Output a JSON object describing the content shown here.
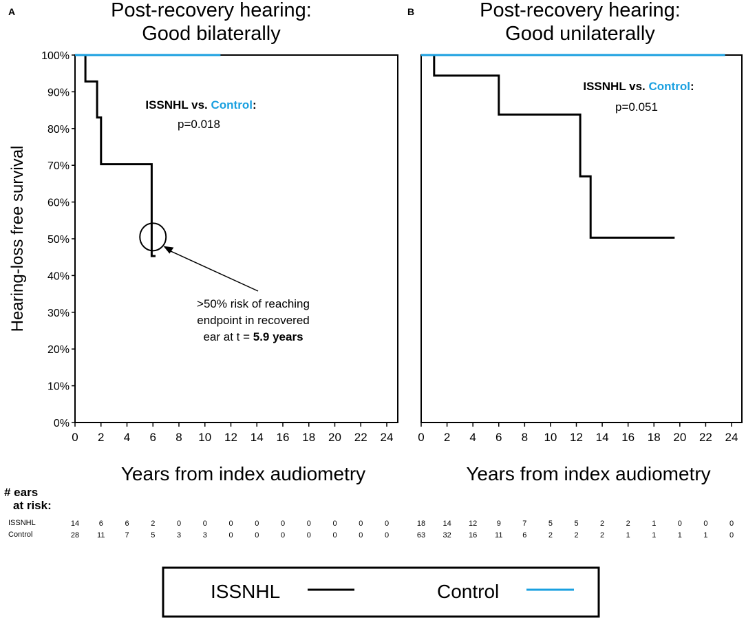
{
  "chart_data": [
    {
      "type": "line",
      "subtype": "kaplan-meier",
      "panel_label": "A",
      "title_lines": [
        "Post-recovery hearing:",
        "Good bilaterally"
      ],
      "ylabel": "Hearing-loss free survival",
      "xlabel": "Years from index audiometry",
      "xlim": [
        0,
        25
      ],
      "ylim": [
        0,
        100
      ],
      "x_ticks": [
        0,
        2,
        4,
        6,
        8,
        10,
        12,
        14,
        16,
        18,
        20,
        22,
        24
      ],
      "y_ticks": [
        0,
        10,
        20,
        30,
        40,
        50,
        60,
        70,
        80,
        90,
        100
      ],
      "y_tick_labels": [
        "0%",
        "10%",
        "20%",
        "30%",
        "40%",
        "50%",
        "60%",
        "70%",
        "80%",
        "90%",
        "100%"
      ],
      "series": [
        {
          "name": "ISSNHL",
          "color": "#000000",
          "steps": [
            [
              0,
              100
            ],
            [
              0.8,
              100
            ],
            [
              0.8,
              92.8
            ],
            [
              1.7,
              92.8
            ],
            [
              1.7,
              83
            ],
            [
              2.0,
              83
            ],
            [
              2.0,
              70.3
            ],
            [
              5.9,
              70.3
            ],
            [
              5.9,
              45.3
            ],
            [
              6.2,
              45.3
            ]
          ]
        },
        {
          "name": "Control",
          "color": "#1aa0e0",
          "steps": [
            [
              0,
              100
            ],
            [
              11.2,
              100
            ]
          ]
        }
      ],
      "comparison": {
        "left": "ISSNHL vs. ",
        "right": "Control",
        "colon": ":",
        "p": "p=0.018"
      },
      "annotation": {
        "lines": [
          ">50% risk of reaching",
          "endpoint in recovered",
          "ear at t = "
        ],
        "bold_value": "5.9 years",
        "circle_at": [
          6.0,
          50.5
        ],
        "arrow_to": [
          6.8,
          48
        ]
      },
      "at_risk": {
        "ISSNHL": [
          "14",
          "6",
          "6",
          "2",
          "0",
          "0",
          "0",
          "0",
          "0",
          "0",
          "0",
          "0",
          "0"
        ],
        "Control": [
          "28",
          "11",
          "7",
          "5",
          "3",
          "3",
          "0",
          "0",
          "0",
          "0",
          "0",
          "0",
          "0"
        ]
      }
    },
    {
      "type": "line",
      "subtype": "kaplan-meier",
      "panel_label": "B",
      "title_lines": [
        "Post-recovery hearing:",
        "Good unilaterally"
      ],
      "xlabel": "Years from index audiometry",
      "xlim": [
        0,
        25
      ],
      "ylim": [
        0,
        100
      ],
      "x_ticks": [
        0,
        2,
        4,
        6,
        8,
        10,
        12,
        14,
        16,
        18,
        20,
        22,
        24
      ],
      "series": [
        {
          "name": "ISSNHL",
          "color": "#000000",
          "steps": [
            [
              0,
              100
            ],
            [
              1.0,
              100
            ],
            [
              1.0,
              94.4
            ],
            [
              6.0,
              94.4
            ],
            [
              6.0,
              83.8
            ],
            [
              12.3,
              83.8
            ],
            [
              12.3,
              67
            ],
            [
              13.1,
              67
            ],
            [
              13.1,
              50.3
            ],
            [
              19.6,
              50.3
            ]
          ]
        },
        {
          "name": "Control",
          "color": "#1aa0e0",
          "steps": [
            [
              0,
              100
            ],
            [
              23.5,
              100
            ]
          ]
        }
      ],
      "comparison": {
        "left": "ISSNHL vs. ",
        "right": "Control",
        "colon": ":",
        "p": "p=0.051"
      },
      "at_risk": {
        "ISSNHL": [
          "18",
          "14",
          "12",
          "9",
          "7",
          "5",
          "5",
          "2",
          "2",
          "1",
          "0",
          "0",
          "0"
        ],
        "Control": [
          "63",
          "32",
          "16",
          "11",
          "6",
          "2",
          "2",
          "2",
          "1",
          "1",
          "1",
          "1",
          "0"
        ]
      }
    }
  ],
  "risk_table": {
    "heading_lines": [
      "# ears",
      "at risk:"
    ],
    "row_labels": [
      "ISSNHL",
      "Control"
    ]
  },
  "legend": {
    "items": [
      {
        "label": "ISSNHL",
        "color": "#000000"
      },
      {
        "label": "Control",
        "color": "#1aa0e0"
      }
    ]
  },
  "colors": {
    "control": "#1aa0e0",
    "issnhl": "#000000"
  }
}
